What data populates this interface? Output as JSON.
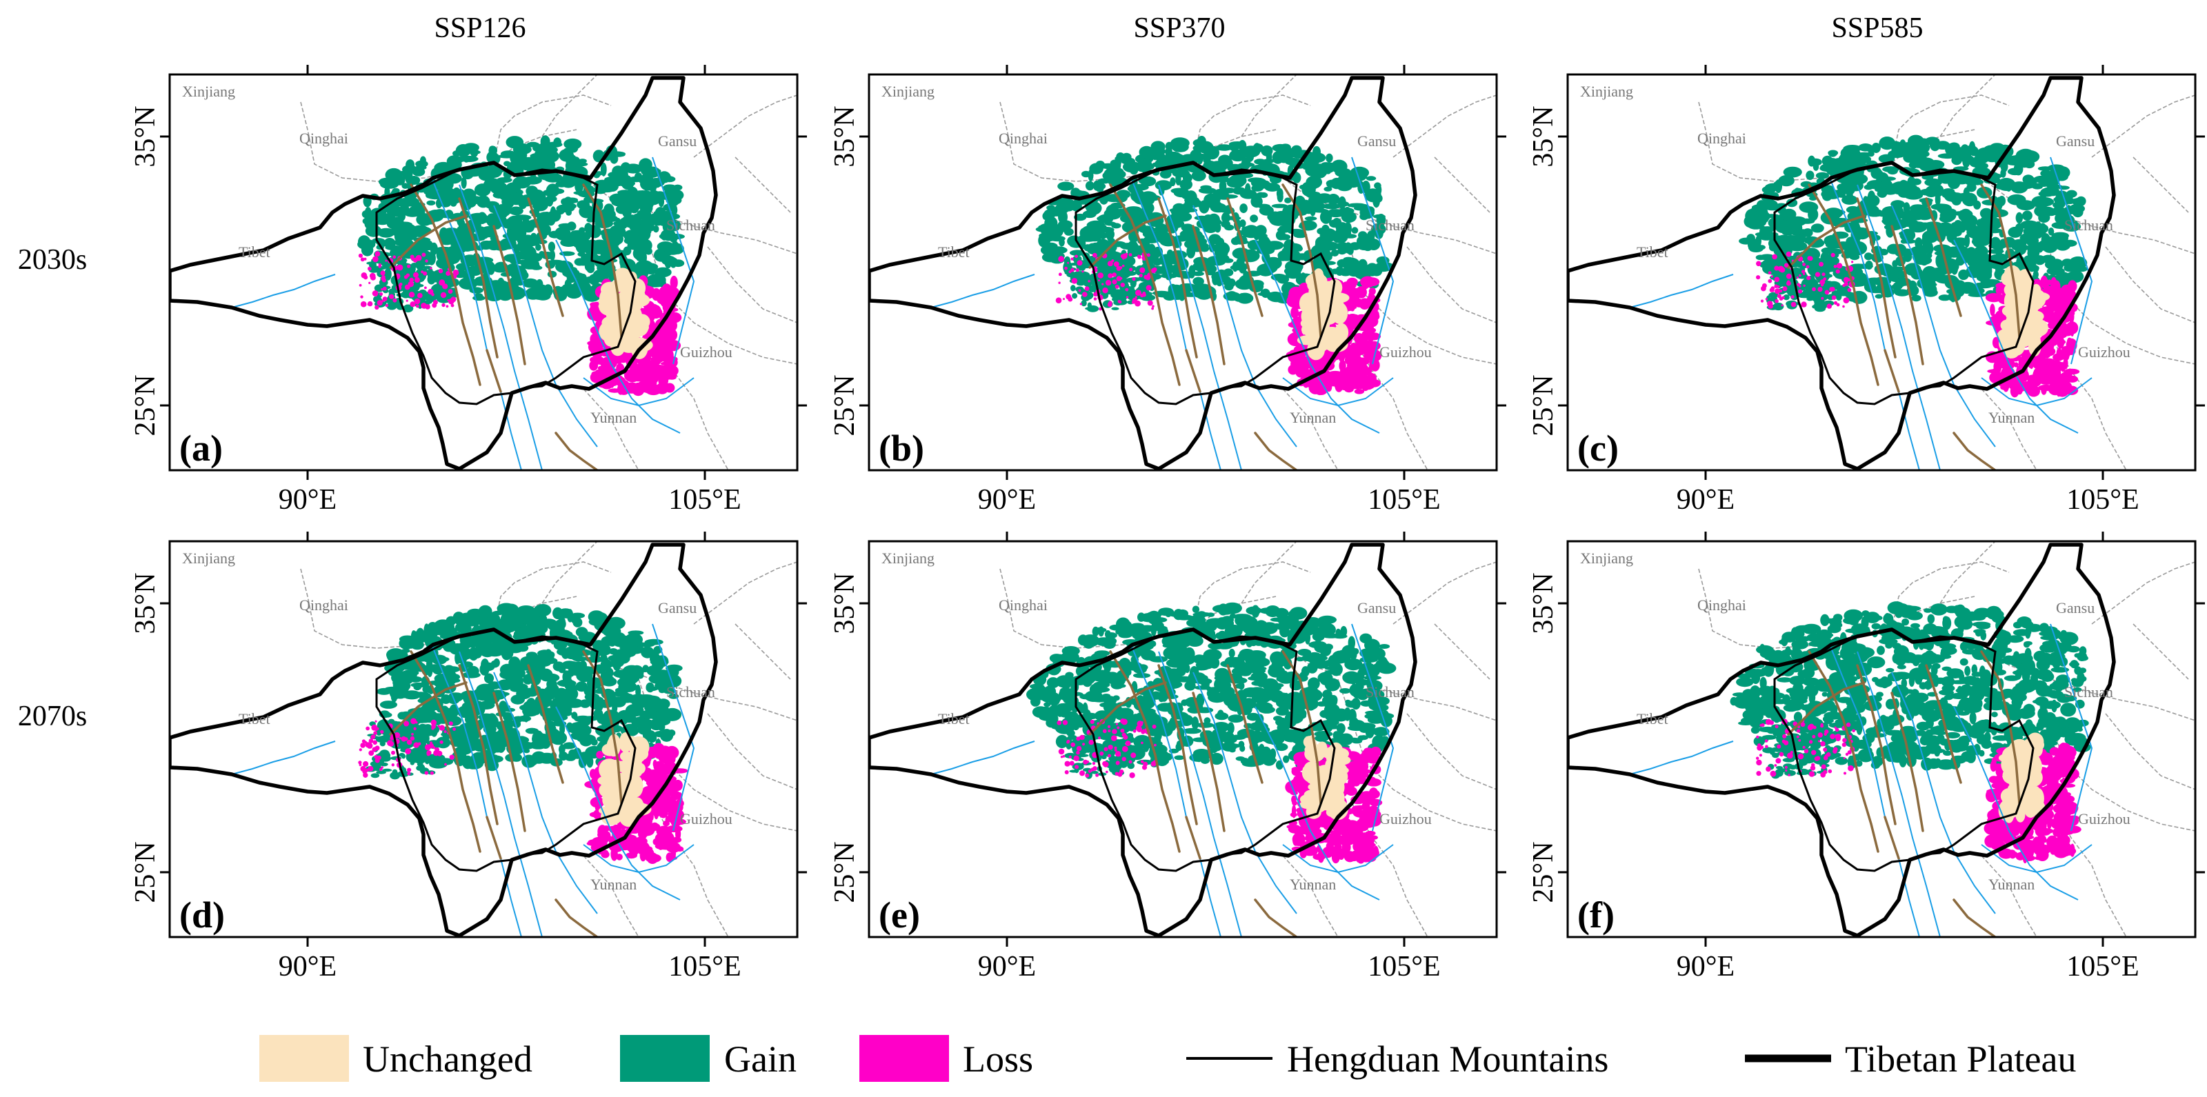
{
  "columns": [
    "SSP126",
    "SSP370",
    "SSP585"
  ],
  "rows": [
    "2030s",
    "2070s"
  ],
  "panels": [
    {
      "label": "(a)",
      "scenario": "SSP126",
      "period": "2030s",
      "gain_extent": 1.0,
      "loss_extent": 1.0
    },
    {
      "label": "(b)",
      "scenario": "SSP370",
      "period": "2030s",
      "gain_extent": 1.08,
      "loss_extent": 1.0
    },
    {
      "label": "(c)",
      "scenario": "SSP585",
      "period": "2030s",
      "gain_extent": 1.06,
      "loss_extent": 0.98
    },
    {
      "label": "(d)",
      "scenario": "SSP126",
      "period": "2070s",
      "gain_extent": 0.92,
      "loss_extent": 1.08
    },
    {
      "label": "(e)",
      "scenario": "SSP370",
      "period": "2070s",
      "gain_extent": 1.12,
      "loss_extent": 1.02
    },
    {
      "label": "(f)",
      "scenario": "SSP585",
      "period": "2070s",
      "gain_extent": 1.12,
      "loss_extent": 1.0
    }
  ],
  "axes": {
    "x_ticks": [
      "90°E",
      "105°E"
    ],
    "y_ticks": [
      "35°N",
      "25°N"
    ]
  },
  "place_labels": [
    "Xinjiang",
    "Qinghai",
    "Gansu",
    "Sichuan",
    "Tibet",
    "Guizhou",
    "Yunnan"
  ],
  "legend": [
    {
      "label": "Unchanged",
      "type": "patch",
      "color": "#fbe3bd"
    },
    {
      "label": "Gain",
      "type": "patch",
      "color": "#009a78"
    },
    {
      "label": "Loss",
      "type": "patch",
      "color": "#ff00c8"
    },
    {
      "label": "Hengduan Mountains",
      "type": "line-thin",
      "color": "#000000"
    },
    {
      "label": "Tibetan Plateau",
      "type": "line-thick",
      "color": "#000000"
    }
  ],
  "colors": {
    "unchanged": "#fbe3bd",
    "gain": "#009a78",
    "loss": "#ff00c8",
    "river": "#1a9ee6",
    "fault": "#8b6a3e",
    "province_border": "#9a9a9a",
    "plateau_border": "#000000"
  }
}
